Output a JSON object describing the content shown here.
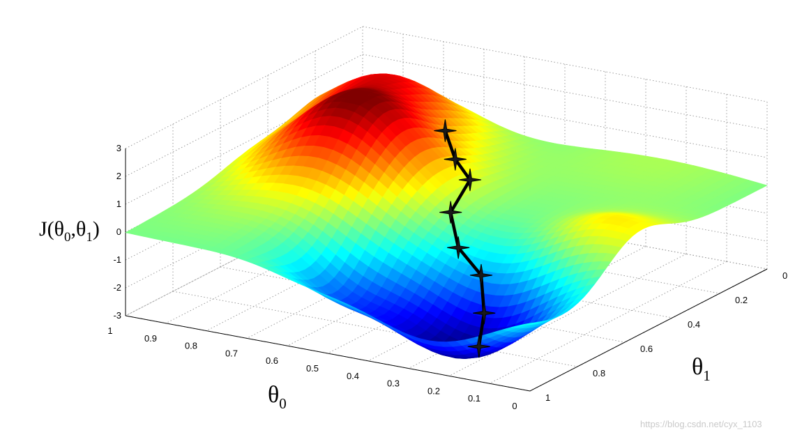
{
  "chart_data": {
    "type": "surface",
    "zlabel": "J(θ0,θ1)",
    "xlabel": "θ0",
    "ylabel": "θ1",
    "xlim": [
      0,
      1
    ],
    "ylim": [
      0,
      1
    ],
    "zlim": [
      -3,
      3
    ],
    "x_ticks": [
      "0",
      "0.1",
      "0.2",
      "0.3",
      "0.4",
      "0.5",
      "0.6",
      "0.7",
      "0.8",
      "0.9",
      "1"
    ],
    "y_ticks": [
      "0",
      "0.2",
      "0.4",
      "0.6",
      "0.8",
      "1"
    ],
    "z_ticks": [
      "-3",
      "-2",
      "-1",
      "0",
      "1",
      "2",
      "3"
    ],
    "grid": true,
    "colormap": "jet",
    "surface_features": [
      {
        "kind": "peak",
        "theta0": 0.75,
        "theta1": 0.45,
        "J": 2.8
      },
      {
        "kind": "peak",
        "theta0": 0.85,
        "theta1": 0.15,
        "J": 2.3
      },
      {
        "kind": "valley",
        "theta0": 0.25,
        "theta1": 0.85,
        "J": -3.0
      }
    ],
    "descent_path": {
      "marker": "star",
      "color": "#000000",
      "points": [
        {
          "theta0": 0.62,
          "theta1": 0.3,
          "J": 1.6
        },
        {
          "theta0": 0.56,
          "theta1": 0.36,
          "J": 1.0
        },
        {
          "theta0": 0.5,
          "theta1": 0.4,
          "J": 0.6
        },
        {
          "theta0": 0.46,
          "theta1": 0.55,
          "J": 0.2
        },
        {
          "theta0": 0.4,
          "theta1": 0.62,
          "J": -0.6
        },
        {
          "theta0": 0.32,
          "theta1": 0.66,
          "J": -1.2
        },
        {
          "theta0": 0.26,
          "theta1": 0.75,
          "J": -2.0
        },
        {
          "theta0": 0.22,
          "theta1": 0.84,
          "J": -2.7
        }
      ]
    }
  },
  "watermark": "https://blog.csdn.net/cyx_1103"
}
